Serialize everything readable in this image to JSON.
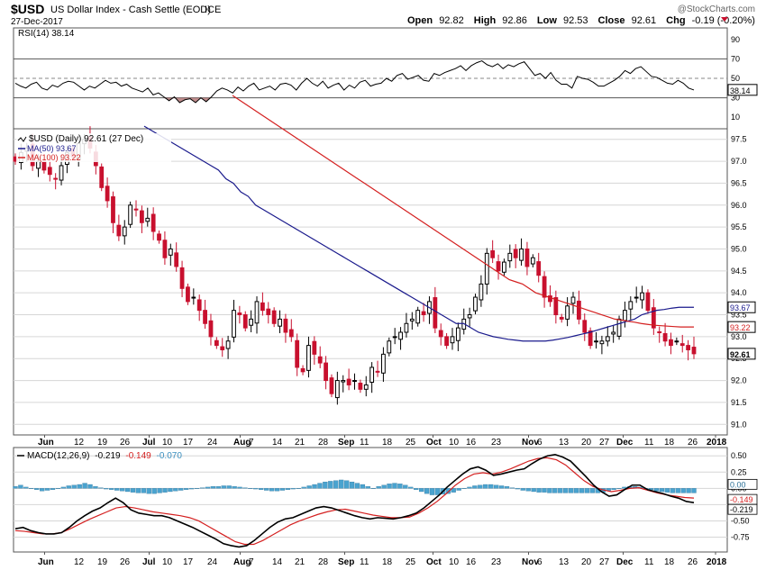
{
  "header": {
    "symbol": "$USD",
    "name": "US Dollar Index - Cash Settle (EOD)",
    "exchange": "ICE",
    "date": "27-Dec-2017",
    "watermark": "@StockCharts.com",
    "open_label": "Open",
    "open": "92.82",
    "high_label": "High",
    "high": "92.86",
    "low_label": "Low",
    "low": "92.53",
    "close_label": "Close",
    "close": "92.61",
    "chg_label": "Chg",
    "chg": "-0.19 (-0.20%)"
  },
  "colors": {
    "up": "#000000",
    "down": "#c8102e",
    "ma50": "#1a1a8c",
    "ma100": "#d42020",
    "grid": "#d6d6d6",
    "hist": "#4aa3cf",
    "rsi_fill": "#b07070"
  },
  "chart_data": [
    {
      "type": "line",
      "title": "RSI(14) 38.14",
      "ylim": [
        0,
        100
      ],
      "yticks": [
        "90",
        "70",
        "50",
        "30",
        "10"
      ],
      "last_value_label": "38.14",
      "values": [
        45,
        42,
        40,
        44,
        46,
        40,
        38,
        43,
        41,
        45,
        47,
        46,
        42,
        38,
        42,
        40,
        44,
        48,
        45,
        46,
        42,
        44,
        40,
        38,
        36,
        40,
        33,
        35,
        31,
        27,
        31,
        25,
        28,
        29,
        25,
        30,
        26,
        31,
        37,
        40,
        38,
        35,
        41,
        37,
        42,
        45,
        38,
        40,
        42,
        38,
        44,
        45,
        43,
        38,
        45,
        50,
        45,
        42,
        47,
        40,
        43,
        45,
        38,
        43,
        40,
        46,
        48,
        42,
        44,
        45,
        50,
        47,
        53,
        55,
        49,
        51,
        53,
        48,
        47,
        55,
        53,
        56,
        58,
        60,
        63,
        58,
        63,
        66,
        68,
        64,
        62,
        65,
        60,
        64,
        62,
        65,
        67,
        60,
        53,
        55,
        50,
        56,
        48,
        44,
        44,
        40,
        52,
        50,
        49,
        46,
        42,
        42,
        45,
        48,
        52,
        58,
        55,
        60,
        62,
        57,
        52,
        51,
        48,
        45,
        44,
        48,
        45,
        40,
        38
      ]
    },
    {
      "type": "candlestick",
      "title": "$USD (Daily) 92.61 (27 Dec)",
      "legend": [
        "$USD (Daily) 92.61 (27 Dec)",
        "MA(50) 93.67",
        "MA(100) 93.22"
      ],
      "ylim": [
        90.8,
        97.7
      ],
      "yticks": [
        "97.5",
        "97.0",
        "96.5",
        "96.0",
        "95.5",
        "95.0",
        "94.5",
        "94.0",
        "93.5",
        "93.0",
        "92.5",
        "92.0",
        "91.5",
        "91.0"
      ],
      "ma_labels": {
        "ma50": "93.67",
        "ma100": "93.22",
        "last": "92.61"
      },
      "x_labels": [
        "Jun",
        "12",
        "19",
        "26",
        "Jul",
        "10",
        "17",
        "24",
        "Aug",
        "7",
        "14",
        "21",
        "28",
        "Sep",
        "11",
        "18",
        "25",
        "Oct",
        "10",
        "16",
        "23",
        "Nov",
        "6",
        "13",
        "20",
        "27",
        "Dec",
        "11",
        "18",
        "26",
        "2018"
      ],
      "x_label_bold": [
        "Jun",
        "Jul",
        "Aug",
        "Sep",
        "Oct",
        "Nov",
        "Dec",
        "2018"
      ],
      "closes": [
        97.0,
        97.2,
        97.3,
        96.9,
        97.0,
        96.8,
        96.7,
        96.6,
        96.9,
        97.2,
        97.1,
        97.4,
        97.5,
        97.3,
        96.9,
        96.4,
        96.1,
        95.6,
        95.3,
        95.5,
        96.0,
        95.9,
        95.6,
        95.7,
        95.4,
        95.2,
        94.8,
        95.0,
        94.6,
        94.1,
        93.8,
        93.9,
        93.6,
        93.3,
        93.0,
        92.8,
        92.7,
        92.9,
        93.6,
        93.5,
        93.2,
        93.4,
        93.8,
        93.6,
        93.5,
        93.3,
        93.4,
        93.1,
        93.0,
        92.3,
        92.2,
        92.8,
        92.6,
        92.4,
        92.0,
        91.7,
        92.0,
        92.0,
        91.9,
        92.0,
        91.8,
        91.9,
        92.3,
        92.2,
        92.6,
        92.9,
        93.0,
        93.1,
        93.3,
        93.4,
        93.6,
        93.5,
        93.8,
        93.2,
        93.0,
        92.8,
        93.0,
        93.2,
        93.4,
        93.5,
        93.9,
        94.2,
        94.9,
        94.8,
        94.5,
        94.7,
        94.9,
        94.8,
        95.0,
        94.6,
        94.8,
        94.4,
        93.9,
        93.8,
        93.5,
        93.4,
        93.7,
        93.9,
        93.4,
        93.1,
        92.8,
        92.9,
        92.9,
        93.0,
        93.1,
        93.4,
        93.6,
        93.8,
        93.9,
        94.0,
        93.6,
        93.2,
        93.1,
        92.9,
        92.8,
        92.9,
        92.8,
        92.7,
        92.61
      ],
      "ma50": [
        97.8,
        97.7,
        97.6,
        97.5,
        97.4,
        97.3,
        97.2,
        97.1,
        97.0,
        96.9,
        96.8,
        96.6,
        96.5,
        96.3,
        96.2,
        96.0,
        95.9,
        95.8,
        95.7,
        95.6,
        95.5,
        95.4,
        95.3,
        95.2,
        95.1,
        95.0,
        94.9,
        94.8,
        94.7,
        94.6,
        94.5,
        94.4,
        94.3,
        94.2,
        94.1,
        94.0,
        93.9,
        93.8,
        93.7,
        93.6,
        93.5,
        93.4,
        93.3,
        93.3,
        93.2,
        93.1,
        93.05,
        93.0,
        92.97,
        92.94,
        92.92,
        92.9,
        92.9,
        92.9,
        92.9,
        92.92,
        92.95,
        92.98,
        93.02,
        93.06,
        93.1,
        93.15,
        93.2,
        93.25,
        93.3,
        93.35,
        93.4,
        93.5,
        93.55,
        93.6,
        93.62,
        93.65,
        93.67,
        93.67,
        93.67
      ],
      "ma100": [
        98.5,
        98.4,
        98.3,
        98.2,
        98.1,
        98.0,
        97.9,
        97.8,
        97.7,
        97.6,
        97.5,
        97.4,
        97.3,
        97.2,
        97.1,
        97.0,
        96.9,
        96.8,
        96.7,
        96.6,
        96.5,
        96.4,
        96.3,
        96.2,
        96.1,
        96.0,
        95.9,
        95.8,
        95.7,
        95.6,
        95.5,
        95.4,
        95.3,
        95.2,
        95.1,
        95.0,
        94.9,
        94.8,
        94.7,
        94.6,
        94.5,
        94.4,
        94.3,
        94.25,
        94.2,
        94.1,
        94.0,
        93.95,
        93.9,
        93.85,
        93.8,
        93.75,
        93.7,
        93.65,
        93.6,
        93.55,
        93.5,
        93.45,
        93.4,
        93.38,
        93.35,
        93.33,
        93.3,
        93.28,
        93.26,
        93.25,
        93.24,
        93.23,
        93.22,
        93.22,
        93.22
      ]
    },
    {
      "type": "bar+line",
      "title": "MACD(12,26,9) -0.219, -0.149, -0.070",
      "title_parts": {
        "label": "MACD(12,26,9)",
        "macd": "-0.219",
        "signal": "-0.149",
        "hist": "-0.070"
      },
      "ylim": [
        -0.95,
        0.6
      ],
      "yticks": [
        "0.50",
        "0.25",
        "0.00",
        "-0.25",
        "-0.50",
        "-0.75"
      ],
      "last_labels": [
        "0.00",
        "-0.149",
        "-0.219"
      ],
      "macd": [
        -0.62,
        -0.6,
        -0.65,
        -0.68,
        -0.7,
        -0.7,
        -0.68,
        -0.6,
        -0.5,
        -0.42,
        -0.35,
        -0.3,
        -0.22,
        -0.15,
        -0.22,
        -0.33,
        -0.38,
        -0.4,
        -0.42,
        -0.42,
        -0.45,
        -0.5,
        -0.55,
        -0.6,
        -0.66,
        -0.72,
        -0.78,
        -0.85,
        -0.88,
        -0.9,
        -0.88,
        -0.8,
        -0.7,
        -0.6,
        -0.52,
        -0.47,
        -0.45,
        -0.4,
        -0.35,
        -0.3,
        -0.28,
        -0.3,
        -0.34,
        -0.38,
        -0.42,
        -0.45,
        -0.47,
        -0.45,
        -0.46,
        -0.47,
        -0.45,
        -0.42,
        -0.38,
        -0.3,
        -0.2,
        -0.1,
        0.02,
        0.12,
        0.22,
        0.3,
        0.33,
        0.28,
        0.2,
        0.22,
        0.25,
        0.28,
        0.3,
        0.38,
        0.45,
        0.5,
        0.52,
        0.48,
        0.42,
        0.3,
        0.18,
        0.05,
        -0.05,
        -0.12,
        -0.1,
        -0.02,
        0.05,
        0.05,
        -0.02,
        -0.05,
        -0.08,
        -0.12,
        -0.15,
        -0.2,
        -0.219
      ],
      "signal": [
        -0.65,
        -0.66,
        -0.68,
        -0.7,
        -0.7,
        -0.68,
        -0.62,
        -0.55,
        -0.48,
        -0.42,
        -0.36,
        -0.3,
        -0.28,
        -0.3,
        -0.33,
        -0.36,
        -0.38,
        -0.4,
        -0.42,
        -0.45,
        -0.5,
        -0.58,
        -0.66,
        -0.74,
        -0.82,
        -0.86,
        -0.86,
        -0.8,
        -0.72,
        -0.64,
        -0.56,
        -0.5,
        -0.45,
        -0.4,
        -0.36,
        -0.33,
        -0.32,
        -0.35,
        -0.38,
        -0.41,
        -0.43,
        -0.45,
        -0.45,
        -0.44,
        -0.38,
        -0.3,
        -0.2,
        -0.08,
        0.05,
        0.15,
        0.22,
        0.24,
        0.22,
        0.25,
        0.3,
        0.36,
        0.42,
        0.46,
        0.47,
        0.44,
        0.36,
        0.24,
        0.12,
        0.03,
        -0.02,
        -0.05,
        -0.03,
        0.0,
        0.01,
        -0.03,
        -0.07,
        -0.1,
        -0.12,
        -0.14,
        -0.149
      ],
      "hist": [
        0.03,
        0.05,
        0.02,
        0.0,
        -0.02,
        -0.04,
        -0.03,
        -0.02,
        0.0,
        0.02,
        0.04,
        0.05,
        0.06,
        0.08,
        0.06,
        0.03,
        0.01,
        -0.01,
        -0.02,
        -0.03,
        -0.04,
        -0.05,
        -0.06,
        -0.07,
        -0.07,
        -0.08,
        -0.08,
        -0.07,
        -0.06,
        -0.05,
        -0.04,
        -0.03,
        -0.02,
        -0.01,
        0.0,
        0.01,
        0.02,
        0.03,
        0.03,
        0.04,
        0.04,
        0.03,
        0.02,
        0.01,
        0.0,
        -0.01,
        -0.02,
        -0.03,
        -0.04,
        -0.04,
        -0.03,
        -0.02,
        -0.01,
        0.0,
        0.02,
        0.04,
        0.06,
        0.08,
        0.1,
        0.11,
        0.12,
        0.13,
        0.12,
        0.1,
        0.08,
        0.06,
        0.03,
        0.0,
        0.03,
        0.05,
        0.07,
        0.08,
        0.07,
        0.05,
        0.02,
        -0.02,
        -0.05,
        -0.08,
        -0.1,
        -0.1,
        -0.09,
        -0.08,
        -0.06,
        -0.03,
        0.0,
        0.02,
        0.04,
        0.05,
        0.06,
        0.06,
        0.05,
        0.04,
        0.03,
        0.01,
        -0.01,
        -0.03,
        -0.04,
        -0.05,
        -0.06,
        -0.06,
        -0.07,
        -0.07,
        -0.07,
        -0.07,
        -0.07,
        -0.07,
        -0.07,
        -0.07,
        -0.07,
        -0.07,
        -0.06,
        -0.04,
        -0.02,
        0.0,
        0.02,
        0.03,
        0.03,
        0.02,
        0.0,
        -0.02,
        -0.04,
        -0.05,
        -0.06,
        -0.07,
        -0.07,
        -0.07,
        -0.07,
        -0.07
      ]
    }
  ]
}
